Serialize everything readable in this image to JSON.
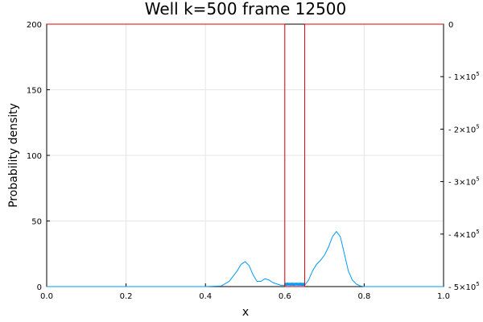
{
  "chart_data": {
    "type": "line",
    "title": "Well k=500 frame 12500",
    "xlabel": "x",
    "ylabel": "Probability density",
    "xlim": [
      0,
      1
    ],
    "ylim": [
      0,
      200
    ],
    "y2lim": [
      -500000,
      0
    ],
    "grid": true,
    "legend": "none",
    "x_ticks": [
      "0.0",
      "0.2",
      "0.4",
      "0.6",
      "0.8",
      "1.0"
    ],
    "y_ticks": [
      "0",
      "50",
      "100",
      "150",
      "200"
    ],
    "y2_ticks": [
      {
        "value": 0,
        "base": "0",
        "exp": ""
      },
      {
        "value": -100000,
        "base": "- 1×10",
        "exp": "5"
      },
      {
        "value": -200000,
        "base": "- 2×10",
        "exp": "5"
      },
      {
        "value": -300000,
        "base": "- 3×10",
        "exp": "5"
      },
      {
        "value": -400000,
        "base": "- 4×10",
        "exp": "5"
      },
      {
        "value": -500000,
        "base": "- 5×10",
        "exp": "5"
      }
    ],
    "series": [
      {
        "axis": "left",
        "color": "#009af9",
        "x": [
          0.0,
          0.4,
          0.44,
          0.46,
          0.48,
          0.49,
          0.5,
          0.51,
          0.52,
          0.53,
          0.54,
          0.55,
          0.56,
          0.57,
          0.58,
          0.59,
          0.6,
          0.61,
          0.62,
          0.63,
          0.64,
          0.65,
          0.66,
          0.67,
          0.68,
          0.69,
          0.7,
          0.71,
          0.72,
          0.73,
          0.74,
          0.75,
          0.76,
          0.77,
          0.78,
          0.79,
          0.8,
          1.0
        ],
        "y": [
          0,
          0,
          0.5,
          4,
          12,
          17,
          19,
          16,
          9,
          4,
          4,
          6,
          5,
          3,
          2,
          1,
          1,
          2,
          1,
          2,
          1,
          1,
          5,
          12,
          17,
          20,
          24,
          30,
          38,
          42,
          38,
          25,
          12,
          5,
          2,
          0.5,
          0,
          0
        ]
      },
      {
        "axis": "right",
        "color": "#e00000",
        "x": [
          0.0,
          0.6,
          0.6,
          0.65,
          0.65,
          1.0
        ],
        "y": [
          0,
          0,
          -500000,
          -500000,
          0,
          0
        ]
      }
    ]
  }
}
